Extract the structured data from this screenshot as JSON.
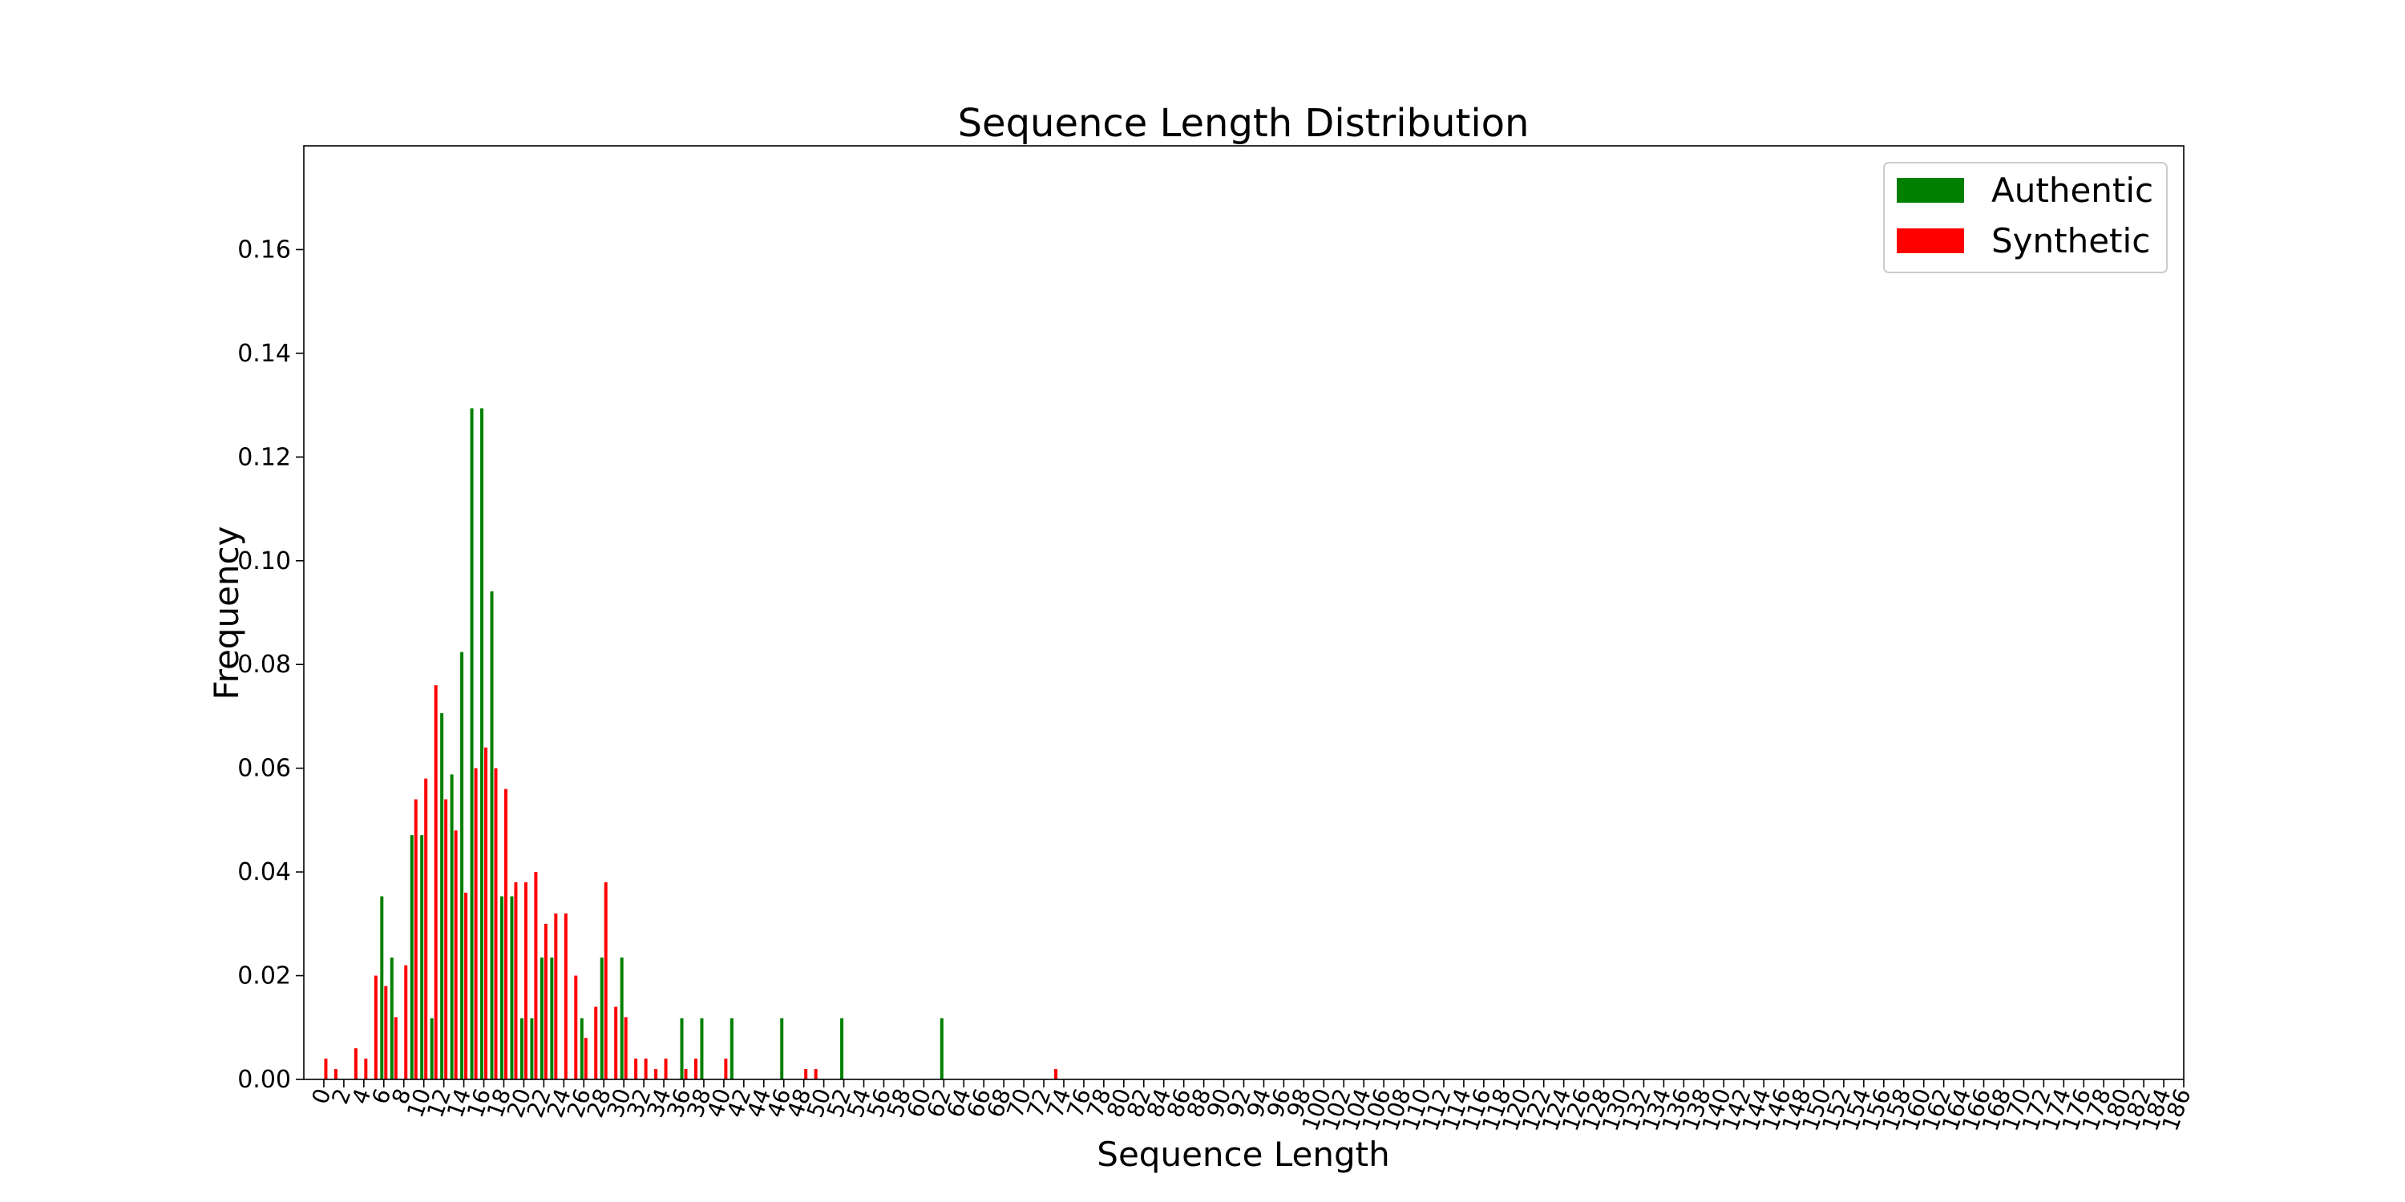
{
  "chart_data": {
    "type": "bar",
    "title": "Sequence Length Distribution",
    "xlabel": "Sequence Length",
    "ylabel": "Frequency",
    "xlim": [
      -2,
      186
    ],
    "ylim": [
      0,
      0.18
    ],
    "yticks": [
      0.0,
      0.02,
      0.04,
      0.06,
      0.08,
      0.1,
      0.12,
      0.14,
      0.16
    ],
    "ytick_labels": [
      "0.00",
      "0.02",
      "0.04",
      "0.06",
      "0.08",
      "0.10",
      "0.12",
      "0.14",
      "0.16"
    ],
    "xtick_step": 2,
    "xtick_start": 0,
    "xtick_end": 186,
    "grid": false,
    "legend_position": "top-right",
    "series": [
      {
        "name": "Authentic",
        "color": "#008000",
        "x": [
          6,
          7,
          9,
          10,
          11,
          12,
          13,
          14,
          15,
          16,
          17,
          18,
          19,
          20,
          21,
          22,
          23,
          26,
          28,
          30,
          36,
          38,
          41,
          46,
          52,
          62
        ],
        "values": [
          0.0353,
          0.0235,
          0.0471,
          0.0471,
          0.0118,
          0.0706,
          0.0588,
          0.0824,
          0.1294,
          0.1294,
          0.0941,
          0.0353,
          0.0353,
          0.0118,
          0.0118,
          0.0235,
          0.0235,
          0.0118,
          0.0235,
          0.0235,
          0.0118,
          0.0118,
          0.0118,
          0.0118,
          0.0118,
          0.0118
        ]
      },
      {
        "name": "Synthetic",
        "color": "#ff0000",
        "x": [
          0,
          1,
          3,
          4,
          5,
          6,
          7,
          8,
          9,
          10,
          11,
          12,
          13,
          14,
          15,
          16,
          17,
          18,
          19,
          20,
          21,
          22,
          23,
          24,
          25,
          26,
          27,
          28,
          29,
          30,
          31,
          32,
          33,
          34,
          36,
          37,
          40,
          48,
          49,
          73
        ],
        "values": [
          0.004,
          0.002,
          0.006,
          0.004,
          0.02,
          0.018,
          0.012,
          0.022,
          0.054,
          0.058,
          0.076,
          0.054,
          0.048,
          0.036,
          0.06,
          0.064,
          0.06,
          0.056,
          0.038,
          0.038,
          0.04,
          0.03,
          0.032,
          0.032,
          0.02,
          0.008,
          0.014,
          0.038,
          0.014,
          0.012,
          0.004,
          0.004,
          0.002,
          0.004,
          0.002,
          0.004,
          0.004,
          0.002,
          0.002,
          0.002
        ]
      }
    ]
  }
}
